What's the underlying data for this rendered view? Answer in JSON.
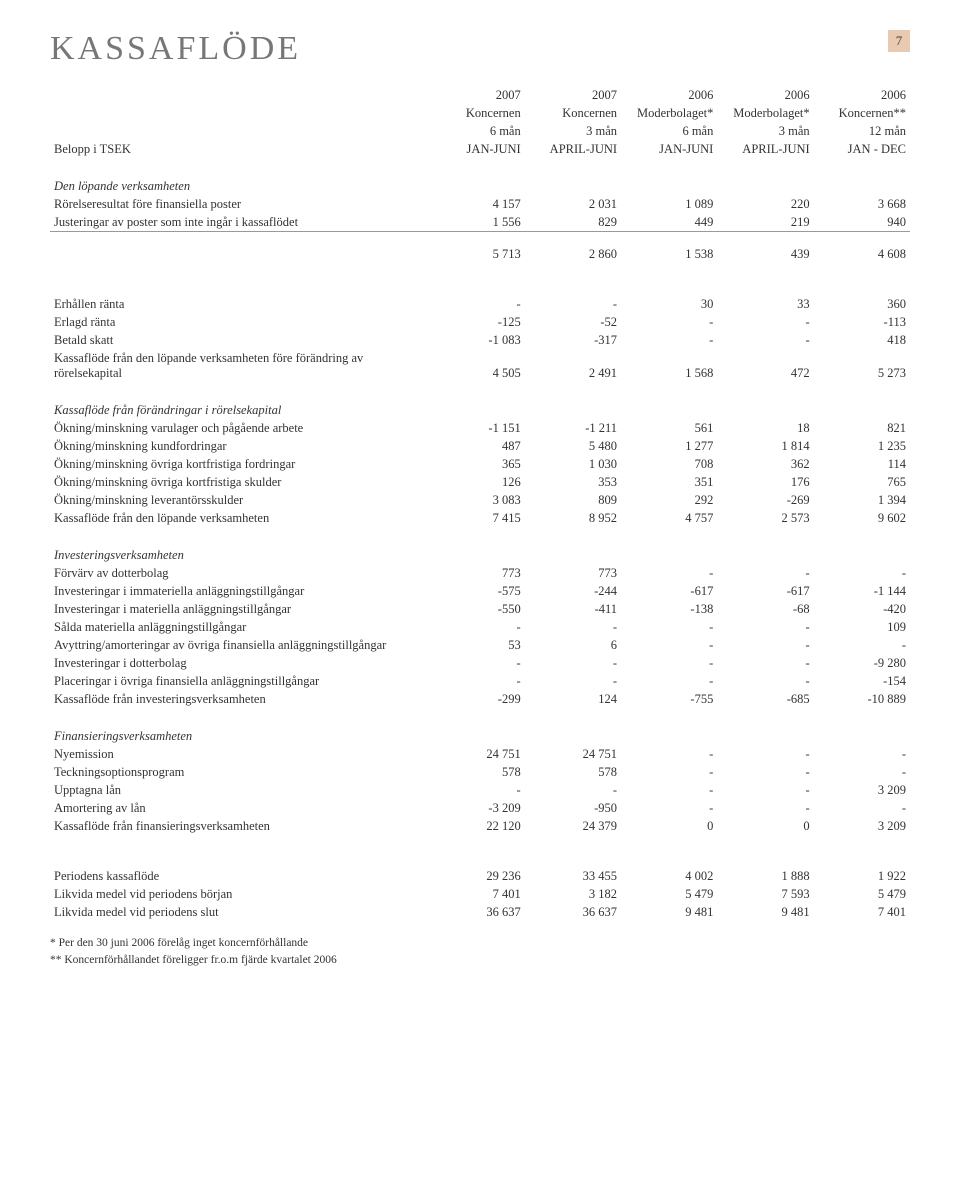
{
  "meta": {
    "title": "KASSAFLÖDE",
    "page_number": "7"
  },
  "header": {
    "years": [
      "2007",
      "2007",
      "2006",
      "2006",
      "2006"
    ],
    "entities": [
      "Koncernen",
      "Koncernen",
      "Moderbolaget*",
      "Moderbolaget*",
      "Koncernen**"
    ],
    "periods": [
      "6 mån",
      "3 mån",
      "6 mån",
      "3 mån",
      "12 mån"
    ],
    "row_label": "Belopp i TSEK",
    "ranges": [
      "JAN-JUNI",
      "APRIL-JUNI",
      "JAN-JUNI",
      "APRIL-JUNI",
      "JAN - DEC"
    ]
  },
  "sections": [
    {
      "title": "Den löpande verksamheten",
      "title_italic": true,
      "rows": [
        {
          "label": "Rörelseresultat före finansiella poster",
          "vals": [
            "4 157",
            "2 031",
            "1 089",
            "220",
            "3 668"
          ]
        },
        {
          "label": "Justeringar av poster som inte ingår i kassaflödet",
          "vals": [
            "1 556",
            "829",
            "449",
            "219",
            "940"
          ],
          "underline": true
        },
        {
          "label": "",
          "vals": [
            "5 713",
            "2 860",
            "1 538",
            "439",
            "4 608"
          ],
          "gap": true
        }
      ]
    },
    {
      "rows": [
        {
          "label": "Erhållen ränta",
          "vals": [
            "-",
            "-",
            "30",
            "33",
            "360"
          ],
          "gap": true
        },
        {
          "label": "Erlagd ränta",
          "vals": [
            "-125",
            "-52",
            "-",
            "-",
            "-113"
          ]
        },
        {
          "label": "Betald skatt",
          "vals": [
            "-1 083",
            "-317",
            "-",
            "-",
            "418"
          ]
        },
        {
          "label": "Kassaflöde från den löpande verksamheten före förändring av rörelsekapital",
          "vals": [
            "4 505",
            "2 491",
            "1 568",
            "472",
            "5 273"
          ]
        }
      ]
    },
    {
      "title": "Kassaflöde från förändringar i rörelsekapital",
      "title_italic": true,
      "rows": [
        {
          "label": "Ökning/minskning varulager och pågående arbete",
          "vals": [
            "-1 151",
            "-1 211",
            "561",
            "18",
            "821"
          ]
        },
        {
          "label": "Ökning/minskning kundfordringar",
          "vals": [
            "487",
            "5 480",
            "1 277",
            "1 814",
            "1 235"
          ]
        },
        {
          "label": "Ökning/minskning övriga kortfristiga fordringar",
          "vals": [
            "365",
            "1 030",
            "708",
            "362",
            "114"
          ]
        },
        {
          "label": "Ökning/minskning övriga kortfristiga skulder",
          "vals": [
            "126",
            "353",
            "351",
            "176",
            "765"
          ]
        },
        {
          "label": "Ökning/minskning leverantörsskulder",
          "vals": [
            "3 083",
            "809",
            "292",
            "-269",
            "1 394"
          ]
        },
        {
          "label": "Kassaflöde från den löpande verksamheten",
          "vals": [
            "7 415",
            "8 952",
            "4 757",
            "2 573",
            "9 602"
          ]
        }
      ]
    },
    {
      "title": "Investeringsverksamheten",
      "title_italic": true,
      "rows": [
        {
          "label": "Förvärv av dotterbolag",
          "vals": [
            "773",
            "773",
            "-",
            "-",
            "-"
          ]
        },
        {
          "label": "Investeringar i immateriella anläggningstillgångar",
          "vals": [
            "-575",
            "-244",
            "-617",
            "-617",
            "-1 144"
          ]
        },
        {
          "label": "Investeringar i materiella anläggningstillgångar",
          "vals": [
            "-550",
            "-411",
            "-138",
            "-68",
            "-420"
          ]
        },
        {
          "label": "Sålda materiella anläggningstillgångar",
          "vals": [
            "-",
            "-",
            "-",
            "-",
            "109"
          ]
        },
        {
          "label": "Avyttring/amorteringar av övriga finansiella anläggningstillgångar",
          "vals": [
            "53",
            "6",
            "-",
            "-",
            "-"
          ]
        },
        {
          "label": "Investeringar i dotterbolag",
          "vals": [
            "-",
            "-",
            "-",
            "-",
            "-9 280"
          ]
        },
        {
          "label": "Placeringar i övriga finansiella anläggningstillgångar",
          "vals": [
            "-",
            "-",
            "-",
            "-",
            "-154"
          ]
        },
        {
          "label": "Kassaflöde från investeringsverksamheten",
          "vals": [
            "-299",
            "124",
            "-755",
            "-685",
            "-10 889"
          ]
        }
      ]
    },
    {
      "title": "Finansieringsverksamheten",
      "title_italic": true,
      "rows": [
        {
          "label": "Nyemission",
          "vals": [
            "24 751",
            "24 751",
            "-",
            "-",
            "-"
          ]
        },
        {
          "label": "Teckningsoptionsprogram",
          "vals": [
            "578",
            "578",
            "-",
            "-",
            "-"
          ]
        },
        {
          "label": "Upptagna lån",
          "vals": [
            "-",
            "-",
            "-",
            "-",
            "3 209"
          ]
        },
        {
          "label": "Amortering av lån",
          "vals": [
            "-3 209",
            "-950",
            "-",
            "-",
            "-"
          ]
        },
        {
          "label": "Kassaflöde från finansieringsverksamheten",
          "vals": [
            "22 120",
            "24 379",
            "0",
            "0",
            "3 209"
          ]
        }
      ]
    },
    {
      "rows": [
        {
          "label": "Periodens kassaflöde",
          "vals": [
            "29 236",
            "33 455",
            "4 002",
            "1 888",
            "1 922"
          ],
          "gap": true
        },
        {
          "label": "Likvida medel vid periodens början",
          "vals": [
            "7 401",
            "3 182",
            "5 479",
            "7 593",
            "5 479"
          ]
        },
        {
          "label": "Likvida medel vid periodens slut",
          "vals": [
            "36 637",
            "36 637",
            "9 481",
            "9 481",
            "7 401"
          ]
        }
      ]
    }
  ],
  "footnotes": [
    "* Per den 30 juni 2006 förelåg inget koncernförhållande",
    "** Koncernförhållandet föreligger fr.o.m fjärde kvartalet 2006"
  ]
}
